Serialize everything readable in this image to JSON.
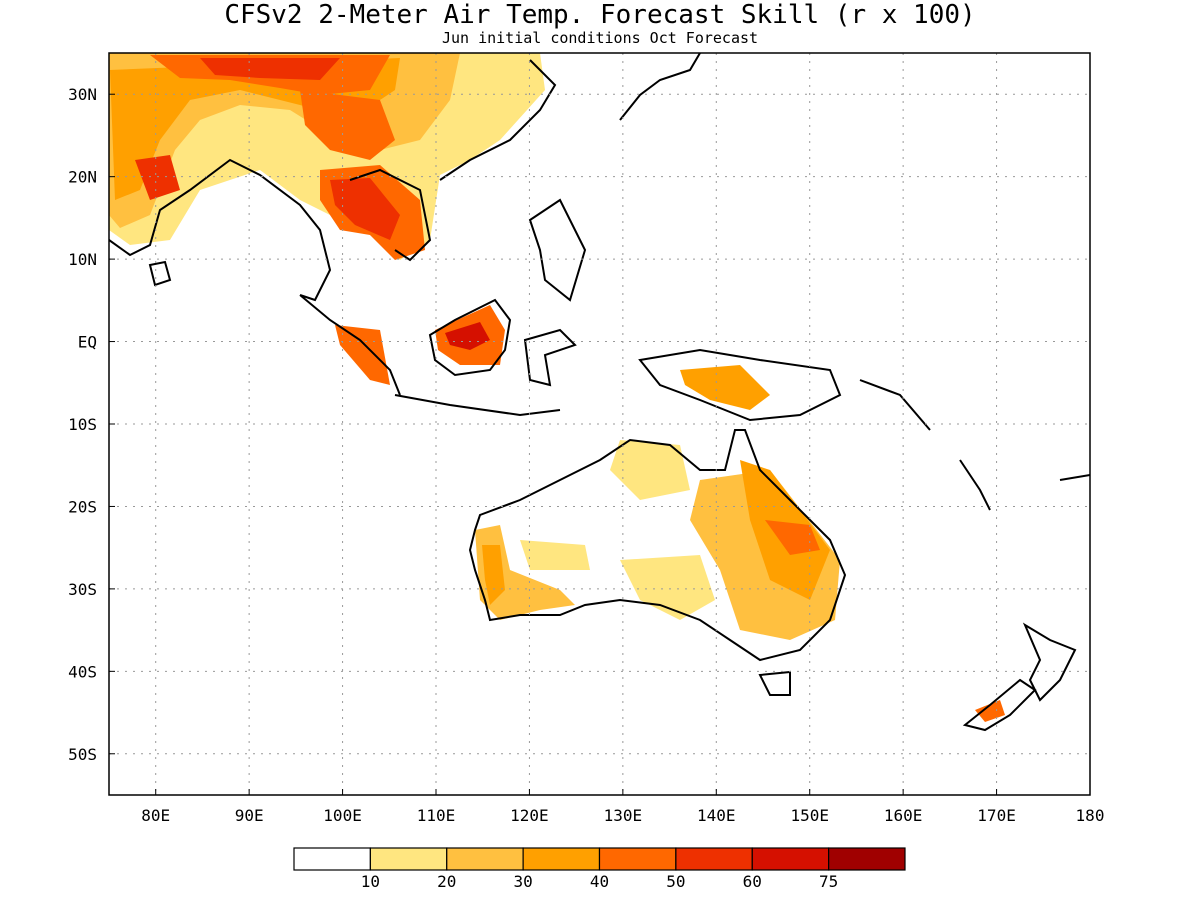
{
  "header": {
    "title": "CFSv2 2-Meter Air Temp. Forecast Skill (r x 100)",
    "subtitle": "Jun initial conditions  Oct Forecast"
  },
  "map": {
    "lon_ticks": [
      "80E",
      "90E",
      "100E",
      "110E",
      "120E",
      "130E",
      "140E",
      "150E",
      "160E",
      "170E",
      "180"
    ],
    "lat_ticks": [
      "30N",
      "20N",
      "10N",
      "EQ",
      "10S",
      "20S",
      "30S",
      "40S",
      "50S"
    ],
    "lon_range": [
      75,
      180
    ],
    "lat_range": [
      -55,
      35
    ]
  },
  "legend": {
    "labels": [
      "10",
      "20",
      "30",
      "40",
      "50",
      "60",
      "75"
    ],
    "colors": [
      "#ffffff",
      "#ffe680",
      "#ffc040",
      "#ffa000",
      "#ff6800",
      "#ee3000",
      "#d51000",
      "#a00000"
    ]
  }
}
